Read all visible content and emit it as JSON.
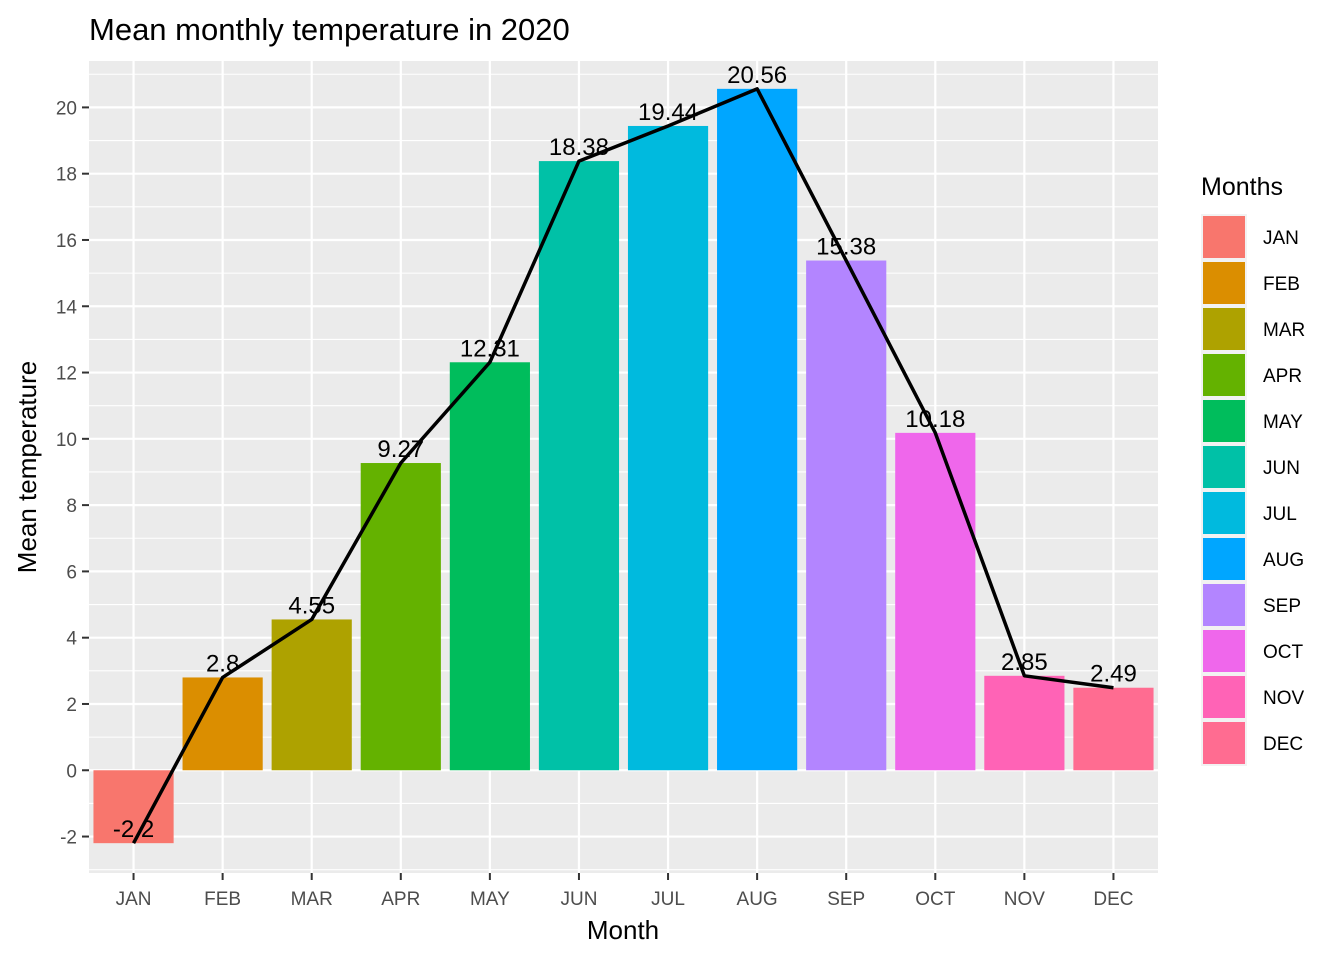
{
  "chart_data": {
    "type": "bar",
    "title": "Mean monthly temperature in 2020",
    "xlabel": "Month",
    "ylabel": "Mean temperature",
    "categories": [
      "JAN",
      "FEB",
      "MAR",
      "APR",
      "MAY",
      "JUN",
      "JUL",
      "AUG",
      "SEP",
      "OCT",
      "NOV",
      "DEC"
    ],
    "values": [
      -2.2,
      2.8,
      4.55,
      9.27,
      12.31,
      18.38,
      19.44,
      20.56,
      15.38,
      10.18,
      2.85,
      2.49
    ],
    "value_labels": [
      "-2.2",
      "2.8",
      "4.55",
      "9.27",
      "12.31",
      "18.38",
      "19.44",
      "20.56",
      "15.38",
      "10.18",
      "2.85",
      "2.49"
    ],
    "colors": [
      "#F8766D",
      "#DB8E00",
      "#AEA200",
      "#64B200",
      "#00BD5C",
      "#00C1A7",
      "#00BADE",
      "#00A6FF",
      "#B385FF",
      "#EF67EB",
      "#FF63B6",
      "#FF6C91"
    ],
    "overlay_line": true,
    "line_color": "#000000",
    "ylim": [
      -3.1,
      21.4
    ],
    "yticks": [
      -2,
      0,
      2,
      4,
      6,
      8,
      10,
      12,
      14,
      16,
      18,
      20
    ],
    "ytick_labels": [
      "-2",
      "0",
      "2",
      "4",
      "6",
      "8",
      "10",
      "12",
      "14",
      "16",
      "18",
      "20"
    ],
    "grid": true,
    "panel_background": "#EBEBEB",
    "legend": {
      "title": "Months",
      "placement": "right",
      "entries": [
        "JAN",
        "FEB",
        "MAR",
        "APR",
        "MAY",
        "JUN",
        "JUL",
        "AUG",
        "SEP",
        "OCT",
        "NOV",
        "DEC"
      ]
    }
  }
}
